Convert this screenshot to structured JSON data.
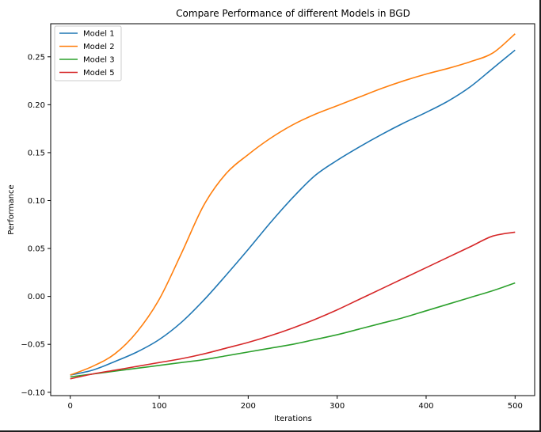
{
  "chart_data": {
    "type": "line",
    "title": "Compare Performance of different Models in BGD",
    "xlabel": "Iterations",
    "ylabel": "Performance",
    "xlim": [
      -22,
      522
    ],
    "ylim": [
      -0.1035,
      0.2845
    ],
    "xticks": [
      0,
      100,
      200,
      300,
      400,
      500
    ],
    "yticks": [
      -0.1,
      -0.05,
      0.0,
      0.05,
      0.1,
      0.15,
      0.2,
      0.25
    ],
    "ytick_labels": [
      "−0.10",
      "−0.05",
      "0.00",
      "0.05",
      "0.10",
      "0.15",
      "0.20",
      "0.25"
    ],
    "grid": false,
    "legend_position": "top-left",
    "x": [
      0,
      25,
      50,
      75,
      100,
      125,
      150,
      175,
      200,
      225,
      250,
      275,
      300,
      325,
      350,
      375,
      400,
      425,
      450,
      475,
      500
    ],
    "series": [
      {
        "name": "Model 1",
        "color": "#1f77b4",
        "values": [
          -0.082,
          -0.077,
          -0.068,
          -0.058,
          -0.045,
          -0.027,
          -0.004,
          0.022,
          0.049,
          0.077,
          0.103,
          0.126,
          0.142,
          0.156,
          0.169,
          0.181,
          0.192,
          0.204,
          0.219,
          0.238,
          0.257
        ]
      },
      {
        "name": "Model 2",
        "color": "#ff7f0e",
        "values": [
          -0.082,
          -0.073,
          -0.06,
          -0.037,
          -0.003,
          0.045,
          0.095,
          0.128,
          0.148,
          0.165,
          0.179,
          0.19,
          0.199,
          0.208,
          0.217,
          0.225,
          0.232,
          0.238,
          0.245,
          0.254,
          0.274
        ]
      },
      {
        "name": "Model 3",
        "color": "#2ca02c",
        "values": [
          -0.084,
          -0.081,
          -0.078,
          -0.075,
          -0.072,
          -0.069,
          -0.066,
          -0.062,
          -0.058,
          -0.054,
          -0.05,
          -0.045,
          -0.04,
          -0.034,
          -0.028,
          -0.022,
          -0.015,
          -0.008,
          -0.001,
          0.006,
          0.014
        ]
      },
      {
        "name": "Model 5",
        "color": "#d62728",
        "values": [
          -0.086,
          -0.081,
          -0.077,
          -0.073,
          -0.069,
          -0.065,
          -0.06,
          -0.054,
          -0.048,
          -0.041,
          -0.033,
          -0.024,
          -0.014,
          -0.003,
          0.008,
          0.019,
          0.03,
          0.041,
          0.052,
          0.063,
          0.067
        ]
      }
    ]
  }
}
